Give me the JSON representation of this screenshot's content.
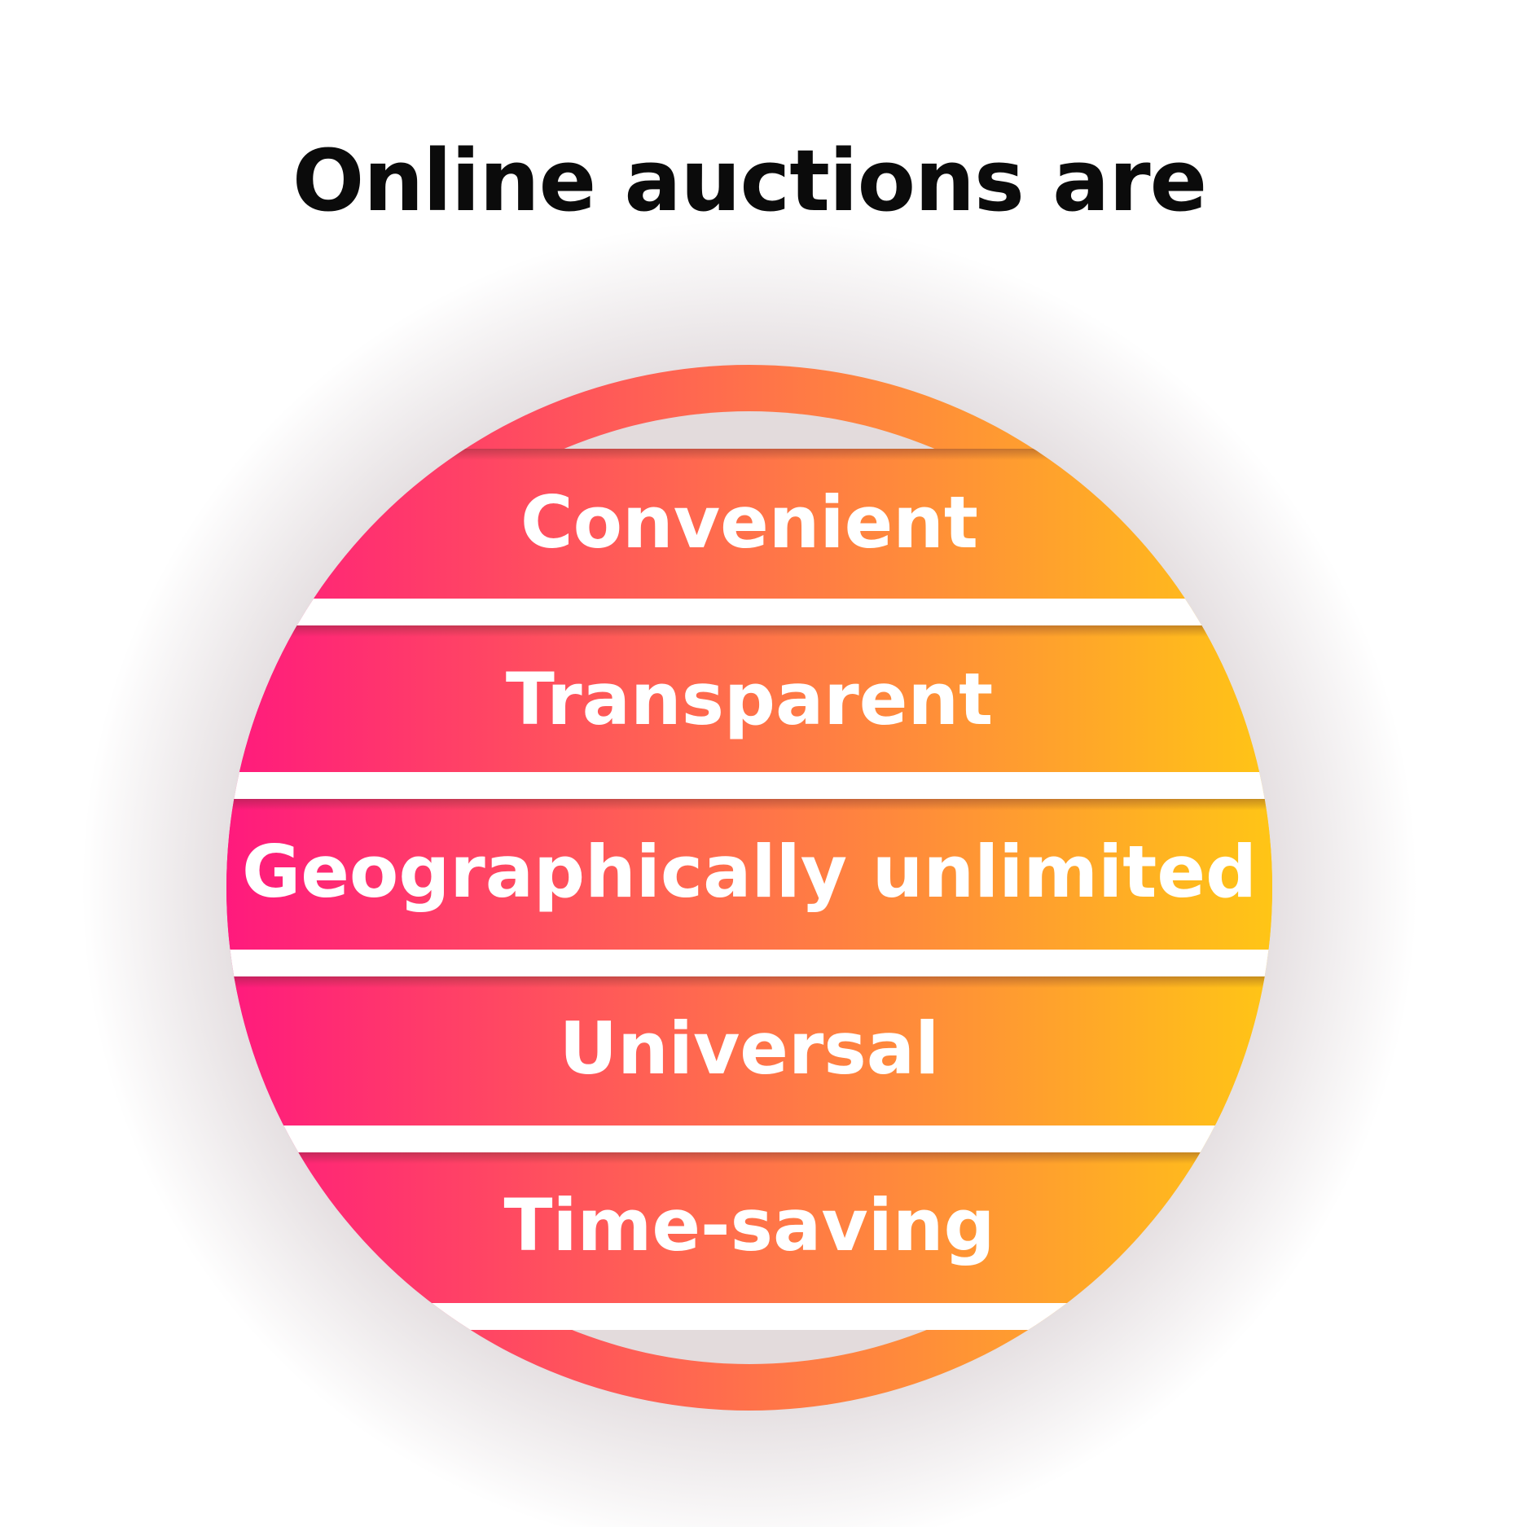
{
  "title": "Online auctions are",
  "items": [
    {
      "label": "Convenient"
    },
    {
      "label": "Transparent"
    },
    {
      "label": "Geographically unlimited"
    },
    {
      "label": "Universal"
    },
    {
      "label": "Time-saving"
    }
  ],
  "colors": {
    "gradient_start": "#ff1a7d",
    "gradient_mid": "#ff7a45",
    "gradient_end": "#ffc516",
    "title_text": "#0b0b0b",
    "band_text": "#ffffff",
    "background": "#ffffff"
  }
}
